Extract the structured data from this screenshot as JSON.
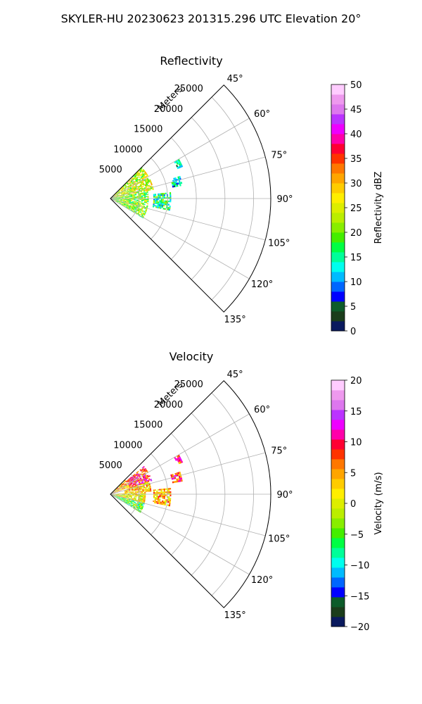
{
  "figure": {
    "suptitle": "SKYLER-HU  20230623  201315.296 UTC Elevation 20°"
  },
  "chart_data": [
    {
      "type": "heatmap",
      "title": "Reflectivity",
      "projection": "polar-sector",
      "theta_range_deg": [
        45,
        135
      ],
      "theta_ticks": [
        "45°",
        "60°",
        "75°",
        "90°",
        "105°",
        "120°",
        "135°"
      ],
      "r_label": "Meters",
      "r_ticks": [
        "5000",
        "10000",
        "15000",
        "20000",
        "25000"
      ],
      "r_max_m": 28000,
      "grid": true,
      "colorbar": {
        "label": "Reflectivity dBZ",
        "range": [
          0,
          50
        ],
        "ticks": [
          "0",
          "5",
          "10",
          "15",
          "20",
          "25",
          "30",
          "35",
          "40",
          "45",
          "50"
        ],
        "colors": [
          "#0a1a5e",
          "#1b3d1b",
          "#0d5c2a",
          "#0000ff",
          "#0066ff",
          "#00bbff",
          "#00ffee",
          "#00ff99",
          "#00ff44",
          "#44ee00",
          "#88ee00",
          "#bbee00",
          "#ddee00",
          "#ffee00",
          "#ffcc00",
          "#ffa500",
          "#ff7700",
          "#ff3300",
          "#ff0033",
          "#ff00aa",
          "#ee00ff",
          "#bb33ff",
          "#dd77ee",
          "#ee99ee",
          "#ffccff"
        ]
      },
      "echoes": [
        {
          "theta": [
            45,
            78
          ],
          "r": [
            0,
            7500
          ],
          "value": 24
        },
        {
          "theta": [
            78,
            120
          ],
          "r": [
            0,
            6500
          ],
          "value": 21
        },
        {
          "theta": [
            84,
            100
          ],
          "r": [
            7500,
            10500
          ],
          "value": 16
        },
        {
          "theta": [
            72,
            79
          ],
          "r": [
            11000,
            12800
          ],
          "value": 12
        },
        {
          "theta": [
            60,
            66
          ],
          "r": [
            12800,
            13800
          ],
          "value": 11
        }
      ]
    },
    {
      "type": "heatmap",
      "title": "Velocity",
      "projection": "polar-sector",
      "theta_range_deg": [
        45,
        135
      ],
      "theta_ticks": [
        "45°",
        "60°",
        "75°",
        "90°",
        "105°",
        "120°",
        "135°"
      ],
      "r_label": "Meters",
      "r_ticks": [
        "5000",
        "10000",
        "15000",
        "20000",
        "25000"
      ],
      "r_max_m": 28000,
      "grid": true,
      "colorbar": {
        "label": "Velocity (m/s)",
        "range": [
          -20,
          20
        ],
        "ticks": [
          "−20",
          "−15",
          "−10",
          "−5",
          "0",
          "5",
          "10",
          "15",
          "20"
        ],
        "colors": [
          "#0a1a5e",
          "#1b3d1b",
          "#0d5c2a",
          "#0000ff",
          "#0066ff",
          "#00bbff",
          "#00ffee",
          "#00ff99",
          "#00ff44",
          "#44ee00",
          "#88ee00",
          "#bbee00",
          "#ddee00",
          "#ffee00",
          "#ffcc00",
          "#ffa500",
          "#ff7700",
          "#ff3300",
          "#ff0033",
          "#ff00aa",
          "#ee00ff",
          "#bb33ff",
          "#dd77ee",
          "#ee99ee",
          "#ffccff"
        ]
      },
      "echoes": [
        {
          "theta": [
            50,
            72
          ],
          "r": [
            3500,
            7500
          ],
          "value": 10
        },
        {
          "theta": [
            72,
            86
          ],
          "r": [
            2500,
            7000
          ],
          "value": 3
        },
        {
          "theta": [
            86,
            104
          ],
          "r": [
            0,
            6000
          ],
          "value": 1
        },
        {
          "theta": [
            104,
            120
          ],
          "r": [
            0,
            6000
          ],
          "value": -5
        },
        {
          "theta": [
            45,
            70
          ],
          "r": [
            0,
            3500
          ],
          "value": 4
        },
        {
          "theta": [
            84,
            100
          ],
          "r": [
            7500,
            10500
          ],
          "value": 4
        },
        {
          "theta": [
            72,
            79
          ],
          "r": [
            11000,
            12800
          ],
          "value": 8
        },
        {
          "theta": [
            60,
            66
          ],
          "r": [
            12800,
            13800
          ],
          "value": 9
        }
      ]
    }
  ]
}
